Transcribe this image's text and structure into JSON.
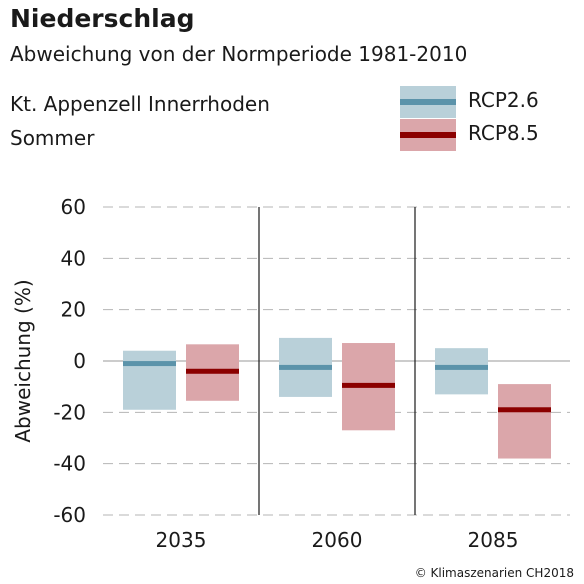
{
  "header": {
    "title": "Niederschlag",
    "subtitle": "Abweichung von der Normperiode 1981-2010",
    "region": "Kt. Appenzell Innerrhoden",
    "season": "Sommer"
  },
  "legend": [
    {
      "name": "RCP2.6",
      "fill": "#b9d0d9",
      "line": "#5b93aa"
    },
    {
      "name": "RCP8.5",
      "fill": "#dba6aa",
      "line": "#8b0000"
    }
  ],
  "credit": "© Klimaszenarien CH2018",
  "chart_data": {
    "type": "bar",
    "title": "Niederschlag",
    "ylabel": "Abweichung (%)",
    "ylim": [
      -60,
      60
    ],
    "yticks": [
      60,
      40,
      20,
      0,
      -20,
      -40,
      -60
    ],
    "grid": "dashed horizontal",
    "legend_position": "top-right",
    "categories": [
      "2035",
      "2060",
      "2085"
    ],
    "series": [
      {
        "name": "RCP2.6",
        "fill": "#b9d0d9",
        "median_color": "#5b93aa",
        "low": [
          -19,
          -14,
          -13
        ],
        "median": [
          -1,
          -2.5,
          -2.5
        ],
        "high": [
          4,
          9,
          5
        ]
      },
      {
        "name": "RCP8.5",
        "fill": "#dba6aa",
        "median_color": "#8b0000",
        "low": [
          -15.5,
          -27,
          -38
        ],
        "median": [
          -4,
          -9.5,
          -19
        ],
        "high": [
          6.5,
          7,
          -9
        ]
      }
    ]
  }
}
